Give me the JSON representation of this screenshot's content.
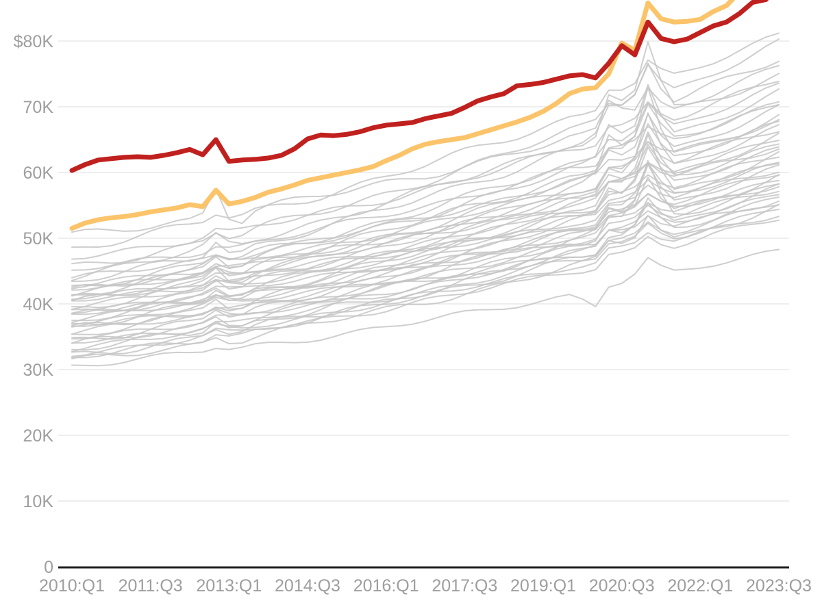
{
  "chart_data": {
    "type": "line",
    "x_start": "2010:Q1",
    "x_end": "2023:Q3",
    "points_per_series": 55,
    "x_ticks": [
      {
        "label": "2010:Q1",
        "idx": 0
      },
      {
        "label": "2011:Q3",
        "idx": 6
      },
      {
        "label": "2013:Q1",
        "idx": 12
      },
      {
        "label": "2014:Q3",
        "idx": 18
      },
      {
        "label": "2016:Q1",
        "idx": 24
      },
      {
        "label": "2017:Q3",
        "idx": 30
      },
      {
        "label": "2019:Q1",
        "idx": 36
      },
      {
        "label": "2020:Q3",
        "idx": 42
      },
      {
        "label": "2022:Q1",
        "idx": 48
      },
      {
        "label": "2023:Q3",
        "idx": 54
      }
    ],
    "y_ticks": [
      {
        "label": "$80K",
        "value": 80
      },
      {
        "label": "70K",
        "value": 70
      },
      {
        "label": "60K",
        "value": 60
      },
      {
        "label": "50K",
        "value": 50
      },
      {
        "label": "40K",
        "value": 40
      },
      {
        "label": "30K",
        "value": 30
      },
      {
        "label": "20K",
        "value": 20
      },
      {
        "label": "10K",
        "value": 10
      },
      {
        "label": "0",
        "value": 0
      }
    ],
    "ylim_visible": [
      0,
      86.5
    ],
    "grid": "horizontal-only",
    "legend": "none",
    "colors": {
      "highlight_red": "#c0211e",
      "highlight_amber": "#fbc46a",
      "gray_line": "#c6c6c6",
      "gridline": "#e9e9e9",
      "axis_line": "#1f1f1f",
      "tick_text": "#9e9e9e",
      "background": "#ffffff"
    },
    "series": [
      {
        "name": "highlight-red",
        "role": "highlighted thick red line (values in $ thousands per quarter, 2010:Q1-2023:Q3)",
        "values": [
          60.3,
          61.2,
          61.9,
          62.1,
          62.3,
          62.4,
          62.3,
          62.6,
          63.0,
          63.5,
          62.7,
          65.0,
          61.7,
          61.9,
          62.0,
          62.2,
          62.6,
          63.6,
          65.1,
          65.7,
          65.6,
          65.8,
          66.2,
          66.8,
          67.2,
          67.4,
          67.6,
          68.2,
          68.6,
          69.0,
          69.9,
          70.9,
          71.5,
          72.0,
          73.2,
          73.4,
          73.7,
          74.2,
          74.7,
          74.9,
          74.4,
          76.6,
          79.3,
          77.9,
          82.9,
          80.4,
          79.9,
          80.3,
          81.3,
          82.3,
          82.9,
          84.2,
          85.9,
          86.3,
          88.5
        ]
      },
      {
        "name": "highlight-amber",
        "role": "highlighted thick amber line (values in $ thousands per quarter, 2010:Q1-2023:Q3, rises off top of visible area in 2022)",
        "values": [
          51.5,
          52.3,
          52.8,
          53.1,
          53.3,
          53.6,
          54.0,
          54.3,
          54.6,
          55.1,
          54.8,
          57.3,
          55.2,
          55.6,
          56.2,
          57.0,
          57.5,
          58.1,
          58.8,
          59.2,
          59.6,
          60.0,
          60.4,
          60.9,
          61.8,
          62.6,
          63.6,
          64.3,
          64.7,
          65.0,
          65.3,
          65.9,
          66.5,
          67.1,
          67.7,
          68.4,
          69.3,
          70.5,
          72.0,
          72.7,
          72.9,
          75.0,
          79.7,
          78.6,
          85.8,
          83.4,
          82.9,
          83.0,
          83.3,
          84.5,
          85.4,
          87.5,
          89.5,
          91.5,
          93.5
        ]
      }
    ],
    "gray_series_note": "approx. 43 unlabeled background lines; each reconstructed from estimated parameters: s=2010 start ($K), e=2023 end ($K), b=2012:Q4 bump amplitude, p1=2020:Q2-Q3 spike amplitude, p2=2021:Q1 spike amplitude, d=2020:Q1 dip, ph=wiggle phase, n=wiggle amplitude",
    "gray_series_params": [
      {
        "s": 50.3,
        "e": 74.5,
        "b": 4.5,
        "p1": 4.5,
        "p2": 5.0,
        "d": 0.8,
        "ph": 0.7,
        "n": 0.5
      },
      {
        "s": 48.5,
        "e": 81.0,
        "b": 1.0,
        "p1": 3.0,
        "p2": 4.0,
        "d": 0.4,
        "ph": 2.1,
        "n": 0.5
      },
      {
        "s": 47.0,
        "e": 74.0,
        "b": 0.8,
        "p1": 2.0,
        "p2": 3.5,
        "d": 0.6,
        "ph": 4.0,
        "n": 0.45
      },
      {
        "s": 45.5,
        "e": 79.5,
        "b": 1.2,
        "p1": 2.5,
        "p2": 6.0,
        "d": 0.3,
        "ph": 1.2,
        "n": 0.5
      },
      {
        "s": 45.0,
        "e": 70.5,
        "b": 0.7,
        "p1": 1.8,
        "p2": 2.5,
        "d": 0.9,
        "ph": 3.3,
        "n": 0.4
      },
      {
        "s": 44.3,
        "e": 77.5,
        "b": 1.5,
        "p1": 3.5,
        "p2": 7.5,
        "d": 0.5,
        "ph": 5.1,
        "n": 0.5
      },
      {
        "s": 43.8,
        "e": 68.0,
        "b": 0.6,
        "p1": 1.5,
        "p2": 3.0,
        "d": 0.7,
        "ph": 0.2,
        "n": 0.4
      },
      {
        "s": 43.3,
        "e": 76.5,
        "b": 2.2,
        "p1": 7.0,
        "p2": 11.0,
        "d": 0.4,
        "ph": 2.8,
        "n": 0.5
      },
      {
        "s": 42.9,
        "e": 66.5,
        "b": 0.9,
        "p1": 2.2,
        "p2": 4.2,
        "d": 0.8,
        "ph": 4.6,
        "n": 0.4
      },
      {
        "s": 42.5,
        "e": 73.0,
        "b": 1.1,
        "p1": 2.8,
        "p2": 5.5,
        "d": 0.3,
        "ph": 1.7,
        "n": 0.5
      },
      {
        "s": 42.2,
        "e": 65.0,
        "b": 0.5,
        "p1": 1.2,
        "p2": 2.2,
        "d": 0.6,
        "ph": 3.9,
        "n": 0.4
      },
      {
        "s": 41.9,
        "e": 72.0,
        "b": 1.8,
        "p1": 5.5,
        "p2": 9.5,
        "d": 0.5,
        "ph": 0.9,
        "n": 0.5
      },
      {
        "s": 41.6,
        "e": 64.0,
        "b": 0.7,
        "p1": 1.6,
        "p2": 3.2,
        "d": 0.7,
        "ph": 5.5,
        "n": 0.4
      },
      {
        "s": 41.3,
        "e": 70.8,
        "b": 1.3,
        "p1": 3.2,
        "p2": 6.5,
        "d": 0.4,
        "ph": 2.4,
        "n": 0.5
      },
      {
        "s": 41.0,
        "e": 62.5,
        "b": 0.6,
        "p1": 1.4,
        "p2": 2.6,
        "d": 0.8,
        "ph": 4.2,
        "n": 0.4
      },
      {
        "s": 40.7,
        "e": 69.5,
        "b": 1.6,
        "p1": 3.8,
        "p2": 7.2,
        "d": 0.5,
        "ph": 1.1,
        "n": 0.5
      },
      {
        "s": 40.4,
        "e": 61.5,
        "b": 0.5,
        "p1": 1.3,
        "p2": 2.4,
        "d": 0.6,
        "ph": 3.6,
        "n": 0.4
      },
      {
        "s": 40.1,
        "e": 68.5,
        "b": 2.0,
        "p1": 6.5,
        "p2": 12.0,
        "d": 0.4,
        "ph": 0.4,
        "n": 0.5
      },
      {
        "s": 39.8,
        "e": 60.5,
        "b": 0.6,
        "p1": 1.5,
        "p2": 2.8,
        "d": 0.7,
        "ph": 5.0,
        "n": 0.4
      },
      {
        "s": 39.4,
        "e": 67.5,
        "b": 1.4,
        "p1": 3.4,
        "p2": 6.8,
        "d": 0.5,
        "ph": 2.0,
        "n": 0.5
      },
      {
        "s": 39.0,
        "e": 59.8,
        "b": 0.5,
        "p1": 1.2,
        "p2": 2.2,
        "d": 0.8,
        "ph": 4.4,
        "n": 0.4
      },
      {
        "s": 38.6,
        "e": 66.5,
        "b": 1.7,
        "p1": 4.0,
        "p2": 10.0,
        "d": 0.4,
        "ph": 1.4,
        "n": 0.5
      },
      {
        "s": 38.3,
        "e": 59.0,
        "b": 0.6,
        "p1": 1.4,
        "p2": 2.5,
        "d": 0.6,
        "ph": 3.1,
        "n": 0.4
      },
      {
        "s": 38.0,
        "e": 65.5,
        "b": 1.2,
        "p1": 3.0,
        "p2": 6.2,
        "d": 0.5,
        "ph": 0.6,
        "n": 0.5
      },
      {
        "s": 37.7,
        "e": 58.3,
        "b": 0.5,
        "p1": 1.3,
        "p2": 2.3,
        "d": 0.7,
        "ph": 5.3,
        "n": 0.4
      },
      {
        "s": 37.4,
        "e": 64.5,
        "b": 1.5,
        "p1": 3.6,
        "p2": 7.8,
        "d": 0.4,
        "ph": 2.6,
        "n": 0.5
      },
      {
        "s": 37.1,
        "e": 57.5,
        "b": 0.6,
        "p1": 1.5,
        "p2": 2.7,
        "d": 0.6,
        "ph": 4.8,
        "n": 0.4
      },
      {
        "s": 36.8,
        "e": 63.5,
        "b": 1.3,
        "p1": 3.3,
        "p2": 7.0,
        "d": 0.5,
        "ph": 1.9,
        "n": 0.5
      },
      {
        "s": 36.5,
        "e": 56.8,
        "b": 0.5,
        "p1": 1.2,
        "p2": 2.1,
        "d": 0.8,
        "ph": 3.4,
        "n": 0.4
      },
      {
        "s": 36.1,
        "e": 62.5,
        "b": 1.6,
        "p1": 3.9,
        "p2": 10.5,
        "d": 0.4,
        "ph": 0.8,
        "n": 0.5
      },
      {
        "s": 35.7,
        "e": 56.0,
        "b": 0.6,
        "p1": 1.4,
        "p2": 2.6,
        "d": 0.6,
        "ph": 5.6,
        "n": 0.4
      },
      {
        "s": 35.3,
        "e": 61.5,
        "b": 1.1,
        "p1": 2.9,
        "p2": 6.0,
        "d": 0.5,
        "ph": 2.3,
        "n": 0.5
      },
      {
        "s": 34.9,
        "e": 55.2,
        "b": 0.5,
        "p1": 1.3,
        "p2": 2.4,
        "d": 0.7,
        "ph": 4.1,
        "n": 0.4
      },
      {
        "s": 34.5,
        "e": 60.5,
        "b": 1.4,
        "p1": 3.5,
        "p2": 7.5,
        "d": 0.4,
        "ph": 1.6,
        "n": 0.5
      },
      {
        "s": 34.1,
        "e": 54.5,
        "b": 0.6,
        "p1": 1.5,
        "p2": 2.8,
        "d": 0.6,
        "ph": 3.8,
        "n": 0.4
      },
      {
        "s": 33.7,
        "e": 59.5,
        "b": 1.2,
        "p1": 3.1,
        "p2": 6.6,
        "d": 0.5,
        "ph": 0.3,
        "n": 0.5
      },
      {
        "s": 33.3,
        "e": 53.8,
        "b": 0.5,
        "p1": 1.2,
        "p2": 2.2,
        "d": 0.7,
        "ph": 5.2,
        "n": 0.4
      },
      {
        "s": 32.9,
        "e": 58.5,
        "b": 1.5,
        "p1": 3.7,
        "p2": 9.0,
        "d": 0.4,
        "ph": 2.9,
        "n": 0.5
      },
      {
        "s": 32.5,
        "e": 53.0,
        "b": 0.6,
        "p1": 1.4,
        "p2": 2.5,
        "d": 0.6,
        "ph": 4.5,
        "n": 0.4
      },
      {
        "s": 32.1,
        "e": 57.5,
        "b": 1.0,
        "p1": 2.6,
        "p2": 5.5,
        "d": 0.5,
        "ph": 1.3,
        "n": 0.5
      },
      {
        "s": 31.7,
        "e": 56.5,
        "b": 0.8,
        "p1": 2.0,
        "p2": 4.5,
        "d": 0.6,
        "ph": 3.0,
        "n": 0.45
      },
      {
        "s": 31.2,
        "e": 54.8,
        "b": 0.9,
        "p1": 2.3,
        "p2": 5.0,
        "d": 0.5,
        "ph": 0.5,
        "n": 0.45
      },
      {
        "s": 30.6,
        "e": 48.2,
        "b": 0.5,
        "p1": 0.8,
        "p2": 3.0,
        "d": 2.5,
        "ph": 2.2,
        "n": 0.35
      }
    ]
  }
}
